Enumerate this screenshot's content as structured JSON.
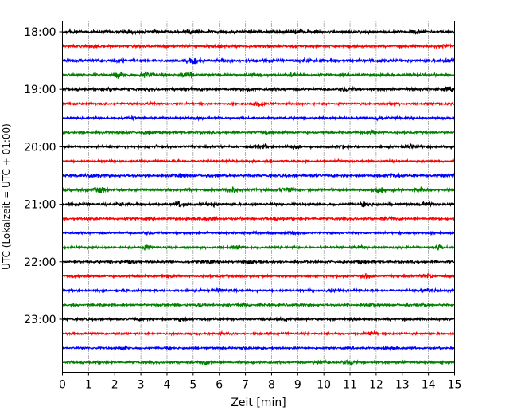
{
  "chart_data": {
    "type": "line",
    "title": "",
    "xlabel": "Zeit  [min]",
    "ylabel": "UTC (Lokalzeit = UTC + 01:00)",
    "xlim": [
      0,
      15
    ],
    "xticks": [
      0,
      1,
      2,
      3,
      4,
      5,
      6,
      7,
      8,
      9,
      10,
      11,
      12,
      13,
      14,
      15
    ],
    "xtick_labels": [
      "0",
      "1",
      "2",
      "3",
      "4",
      "5",
      "6",
      "7",
      "8",
      "9",
      "10",
      "11",
      "12",
      "13",
      "14",
      "15"
    ],
    "ytick_labels": [
      "18:00",
      "19:00",
      "20:00",
      "21:00",
      "22:00",
      "23:00"
    ],
    "ytick_rows": [
      0,
      4,
      8,
      12,
      16,
      20
    ],
    "grid": {
      "x": true,
      "y": false,
      "style": "dotted"
    },
    "trace_minutes": 15,
    "trace_colors": [
      "#000000",
      "#ff0000",
      "#0000ff",
      "#008000"
    ],
    "rows": [
      {
        "utc": "18:00",
        "color": "#000000",
        "amplitude": 0.55,
        "bursts": [
          [
            0.4,
            1.0
          ],
          [
            2.5,
            0.9
          ],
          [
            4.9,
            1.0
          ],
          [
            9.0,
            0.9
          ],
          [
            13.5,
            0.9
          ]
        ]
      },
      {
        "utc": "18:15",
        "color": "#ff0000",
        "amplitude": 0.45,
        "bursts": [
          [
            1.2,
            0.9
          ],
          [
            5.9,
            1.0
          ],
          [
            7.7,
            0.8
          ],
          [
            14.6,
            1.0
          ]
        ]
      },
      {
        "utc": "18:30",
        "color": "#0000ff",
        "amplitude": 0.55,
        "bursts": [
          [
            2.1,
            0.9
          ],
          [
            5.0,
            1.6
          ],
          [
            6.2,
            0.8
          ],
          [
            9.4,
            0.9
          ],
          [
            12.1,
            0.8
          ],
          [
            14.8,
            1.0
          ]
        ]
      },
      {
        "utc": "18:45",
        "color": "#008000",
        "amplitude": 0.5,
        "bursts": [
          [
            2.2,
            1.4
          ],
          [
            3.2,
            1.5
          ],
          [
            4.8,
            1.9
          ],
          [
            7.5,
            0.8
          ],
          [
            8.8,
            1.0
          ],
          [
            13.6,
            1.0
          ]
        ]
      },
      {
        "utc": "19:00",
        "color": "#000000",
        "amplitude": 0.5,
        "bursts": [
          [
            1.8,
            0.9
          ],
          [
            4.6,
            0.8
          ],
          [
            7.2,
            0.8
          ],
          [
            10.9,
            1.0
          ],
          [
            13.2,
            0.8
          ],
          [
            14.8,
            1.1
          ]
        ]
      },
      {
        "utc": "19:15",
        "color": "#ff0000",
        "amplitude": 0.4,
        "bursts": [
          [
            3.3,
            0.8
          ],
          [
            7.5,
            1.6
          ],
          [
            12.6,
            1.0
          ],
          [
            14.6,
            0.8
          ]
        ]
      },
      {
        "utc": "19:30",
        "color": "#0000ff",
        "amplitude": 0.45,
        "bursts": [
          [
            2.6,
            0.9
          ],
          [
            5.1,
            0.8
          ],
          [
            11.9,
            0.7
          ],
          [
            12.1,
            1.2
          ]
        ]
      },
      {
        "utc": "19:45",
        "color": "#008000",
        "amplitude": 0.45,
        "bursts": [
          [
            2.3,
            0.8
          ],
          [
            3.3,
            1.0
          ],
          [
            7.7,
            0.8
          ],
          [
            11.9,
            1.1
          ]
        ]
      },
      {
        "utc": "20:00",
        "color": "#000000",
        "amplitude": 0.45,
        "bursts": [
          [
            3.5,
            0.8
          ],
          [
            7.6,
            1.1
          ],
          [
            8.8,
            1.2
          ],
          [
            10.7,
            1.0
          ],
          [
            13.3,
            1.1
          ]
        ]
      },
      {
        "utc": "20:15",
        "color": "#ff0000",
        "amplitude": 0.4,
        "bursts": [
          [
            2.2,
            0.7
          ],
          [
            4.4,
            0.8
          ],
          [
            10.6,
            0.9
          ],
          [
            12.6,
            0.8
          ]
        ]
      },
      {
        "utc": "20:30",
        "color": "#0000ff",
        "amplitude": 0.5,
        "bursts": [
          [
            1.2,
            1.0
          ],
          [
            4.5,
            0.9
          ],
          [
            12.6,
            1.2
          ],
          [
            14.7,
            1.0
          ]
        ]
      },
      {
        "utc": "20:45",
        "color": "#008000",
        "amplitude": 0.55,
        "bursts": [
          [
            1.5,
            1.4
          ],
          [
            6.5,
            1.5
          ],
          [
            8.6,
            1.2
          ],
          [
            12.1,
            1.4
          ],
          [
            13.7,
            1.0
          ]
        ]
      },
      {
        "utc": "21:00",
        "color": "#000000",
        "amplitude": 0.5,
        "bursts": [
          [
            2.2,
            1.1
          ],
          [
            4.5,
            1.5
          ],
          [
            5.7,
            1.0
          ],
          [
            11.6,
            1.0
          ],
          [
            14.0,
            1.1
          ]
        ]
      },
      {
        "utc": "21:15",
        "color": "#ff0000",
        "amplitude": 0.45,
        "bursts": [
          [
            1.1,
            0.8
          ],
          [
            5.6,
            1.0
          ],
          [
            8.3,
            0.8
          ],
          [
            12.5,
            0.8
          ]
        ]
      },
      {
        "utc": "21:30",
        "color": "#0000ff",
        "amplitude": 0.4,
        "bursts": [
          [
            3.3,
            0.8
          ],
          [
            8.8,
            1.0
          ],
          [
            13.4,
            0.8
          ]
        ]
      },
      {
        "utc": "21:45",
        "color": "#008000",
        "amplitude": 0.45,
        "bursts": [
          [
            3.2,
            1.2
          ],
          [
            6.7,
            0.9
          ],
          [
            11.3,
            0.8
          ],
          [
            14.4,
            1.4
          ]
        ]
      },
      {
        "utc": "22:00",
        "color": "#000000",
        "amplitude": 0.45,
        "bursts": [
          [
            2.5,
            1.1
          ],
          [
            5.6,
            1.1
          ],
          [
            7.2,
            1.0
          ],
          [
            11.5,
            0.8
          ]
        ]
      },
      {
        "utc": "22:15",
        "color": "#ff0000",
        "amplitude": 0.45,
        "bursts": [
          [
            4.1,
            1.0
          ],
          [
            7.0,
            0.8
          ],
          [
            11.6,
            1.2
          ],
          [
            13.9,
            1.4
          ]
        ]
      },
      {
        "utc": "22:30",
        "color": "#0000ff",
        "amplitude": 0.45,
        "bursts": [
          [
            2.3,
            0.8
          ],
          [
            6.0,
            1.0
          ],
          [
            10.3,
            0.9
          ],
          [
            14.0,
            0.8
          ]
        ]
      },
      {
        "utc": "22:45",
        "color": "#008000",
        "amplitude": 0.45,
        "bursts": [
          [
            5.3,
            1.0
          ],
          [
            6.9,
            1.2
          ],
          [
            11.8,
            0.8
          ],
          [
            13.9,
            0.9
          ]
        ]
      },
      {
        "utc": "23:00",
        "color": "#000000",
        "amplitude": 0.45,
        "bursts": [
          [
            3.0,
            0.9
          ],
          [
            4.5,
            1.1
          ],
          [
            8.5,
            0.8
          ],
          [
            11.1,
            0.9
          ]
        ]
      },
      {
        "utc": "23:15",
        "color": "#ff0000",
        "amplitude": 0.4,
        "bursts": [
          [
            2.1,
            0.8
          ],
          [
            6.1,
            0.8
          ],
          [
            11.8,
            1.1
          ]
        ]
      },
      {
        "utc": "23:30",
        "color": "#0000ff",
        "amplitude": 0.4,
        "bursts": [
          [
            2.4,
            0.9
          ],
          [
            7.0,
            0.8
          ],
          [
            12.6,
            0.8
          ]
        ]
      },
      {
        "utc": "23:45",
        "color": "#008000",
        "amplitude": 0.45,
        "bursts": [
          [
            5.5,
            1.0
          ],
          [
            9.8,
            1.0
          ],
          [
            11.0,
            1.5
          ],
          [
            13.0,
            0.8
          ]
        ]
      }
    ]
  }
}
